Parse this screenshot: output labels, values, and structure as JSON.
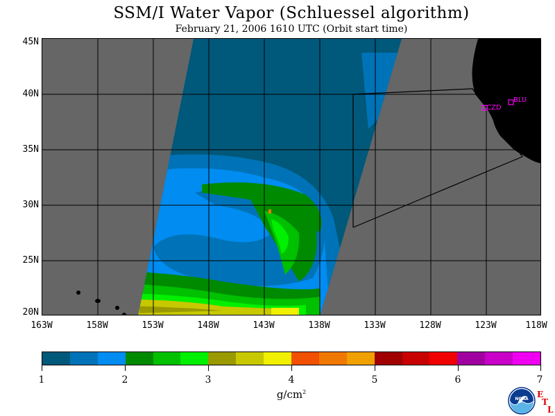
{
  "title": "SSM/I Water Vapor (Schluessel algorithm)",
  "subtitle": "February 21, 2006  1610 UTC  (Orbit start time)",
  "map": {
    "lat_labels": [
      "45N",
      "40N",
      "35N",
      "30N",
      "25N",
      "20N"
    ],
    "lon_labels": [
      "163W",
      "158W",
      "153W",
      "148W",
      "143W",
      "138W",
      "133W",
      "128W",
      "123W",
      "118W"
    ],
    "land_color": "#000000",
    "no_data_color": "#666666",
    "grid_color": "#000000",
    "stations": [
      {
        "name": "CZD",
        "color": "#ff00ff"
      },
      {
        "name": "BLU",
        "color": "#ff00ff"
      }
    ]
  },
  "colorbar": {
    "colors": [
      "#00587a",
      "#0073b8",
      "#008cf0",
      "#008a00",
      "#00c000",
      "#00f000",
      "#9a9a00",
      "#c8c800",
      "#f0f000",
      "#f05000",
      "#f07800",
      "#f0a000",
      "#a00000",
      "#c80000",
      "#f00000",
      "#a000a0",
      "#c800c8",
      "#f000f0"
    ],
    "labels": [
      "1",
      "2",
      "3",
      "4",
      "5",
      "6",
      "7"
    ],
    "units": "g/cm",
    "units_exp": "2"
  },
  "logos": {
    "noaa_text": "NOAA",
    "etl_letters": [
      "E",
      "T",
      "L"
    ]
  }
}
